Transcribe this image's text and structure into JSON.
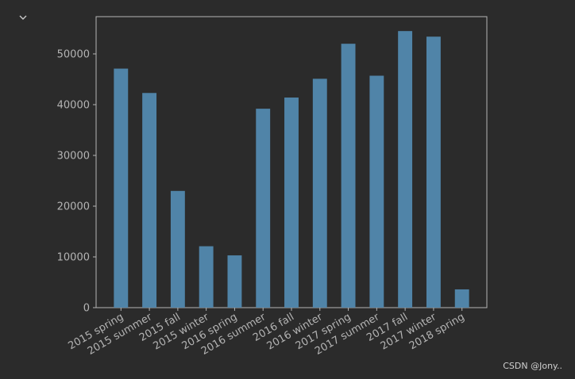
{
  "chart_data": {
    "type": "bar",
    "categories": [
      "2015 spring",
      "2015 summer",
      "2015 fall",
      "2015 winter",
      "2016 spring",
      "2016 summer",
      "2016 fall",
      "2016 winter",
      "2017 spring",
      "2017 summer",
      "2017 fall",
      "2017 winter",
      "2018 spring"
    ],
    "values": [
      47100,
      42300,
      23000,
      12100,
      10300,
      39200,
      41400,
      45100,
      52000,
      45700,
      54500,
      53400,
      3600
    ],
    "color": "#5084a8",
    "ylim": [
      0,
      57340
    ],
    "yticks": [
      0,
      10000,
      20000,
      30000,
      40000,
      50000
    ],
    "grid": false
  },
  "watermark": "CSDN @Jony.."
}
